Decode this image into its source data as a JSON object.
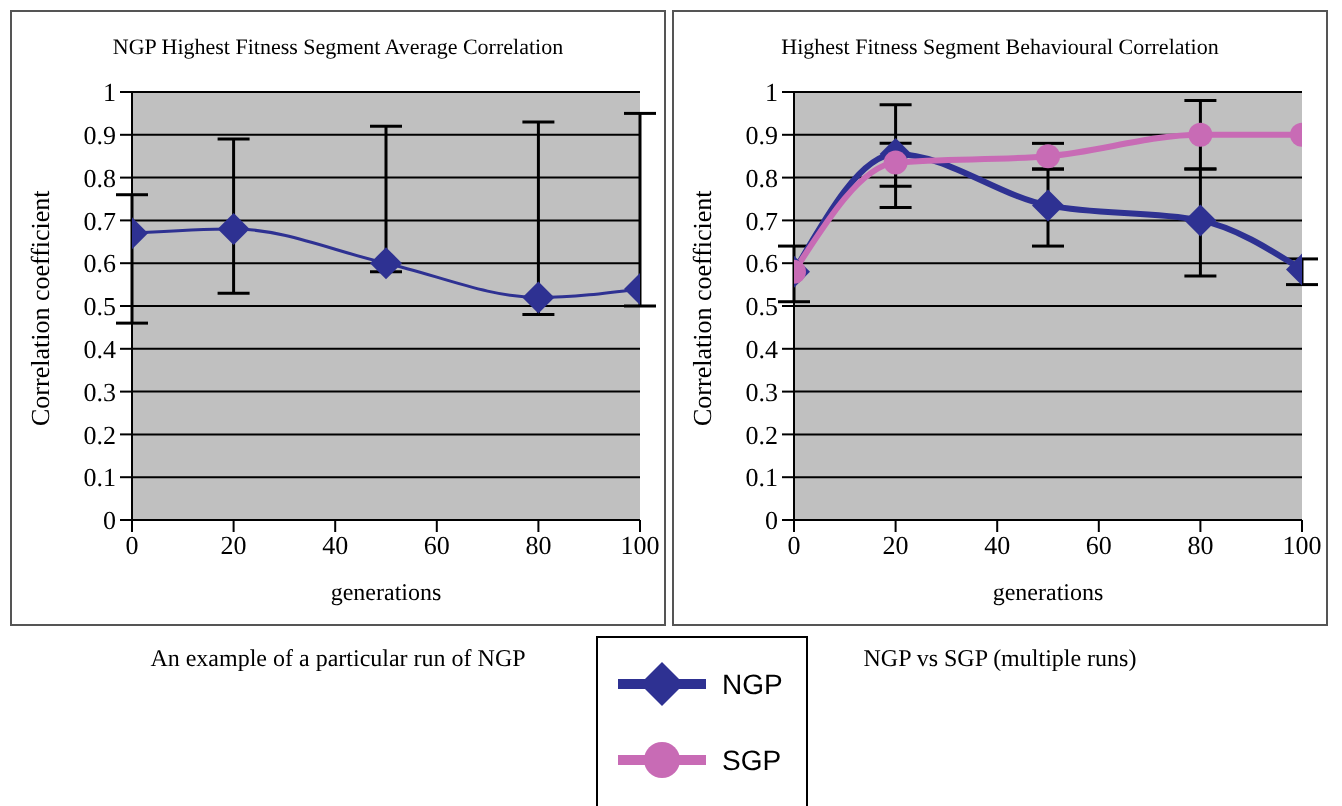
{
  "chart_data": [
    {
      "type": "line",
      "title": "NGP Highest Fitness Segment Average Correlation",
      "xlabel": "generations",
      "ylabel": "Correlation coefficient",
      "x": [
        0,
        20,
        50,
        80,
        100
      ],
      "series": [
        {
          "color": "#2e3192",
          "marker": "diamond",
          "values": [
            0.67,
            0.68,
            0.6,
            0.52,
            0.54
          ],
          "errors": [
            [
              0.46,
              0.76
            ],
            [
              0.53,
              0.89
            ],
            [
              0.58,
              0.92
            ],
            [
              0.48,
              0.93
            ],
            [
              0.5,
              0.95
            ]
          ]
        }
      ],
      "xlim": [
        0,
        100
      ],
      "xticks": [
        0,
        20,
        40,
        60,
        80,
        100
      ],
      "ylim": [
        0,
        1
      ],
      "yticks": [
        0,
        0.1,
        0.2,
        0.3,
        0.4,
        0.5,
        0.6,
        0.7,
        0.8,
        0.9,
        1
      ],
      "grid": "y",
      "annotations": [
        "An example of a particular run of NGP"
      ]
    },
    {
      "type": "line",
      "title": "Highest Fitness Segment Behavioural Correlation",
      "xlabel": "generations",
      "ylabel": "Correlation coefficient",
      "x": [
        0,
        20,
        50,
        80,
        100
      ],
      "series": [
        {
          "name": "NGP",
          "color": "#2e3192",
          "marker": "diamond",
          "values": [
            0.58,
            0.855,
            0.735,
            0.7,
            0.585
          ],
          "errors": [
            [
              0.51,
              0.64
            ],
            [
              0.78,
              0.88
            ],
            [
              0.64,
              0.82
            ],
            [
              0.57,
              0.82
            ],
            [
              0.55,
              0.61
            ]
          ]
        },
        {
          "name": "SGP",
          "color": "#c86bb5",
          "marker": "circle",
          "values": [
            0.58,
            0.835,
            0.85,
            0.9,
            0.9
          ],
          "errors": [
            null,
            [
              0.73,
              0.97
            ],
            [
              0.82,
              0.88
            ],
            [
              0.82,
              0.98
            ],
            null
          ]
        }
      ],
      "xlim": [
        0,
        100
      ],
      "xticks": [
        0,
        20,
        40,
        60,
        80,
        100
      ],
      "ylim": [
        0,
        1
      ],
      "yticks": [
        0,
        0.1,
        0.2,
        0.3,
        0.4,
        0.5,
        0.6,
        0.7,
        0.8,
        0.9,
        1
      ],
      "grid": "y",
      "legend": "bottom",
      "annotations": [
        "NGP vs SGP (multiple runs)"
      ]
    }
  ]
}
